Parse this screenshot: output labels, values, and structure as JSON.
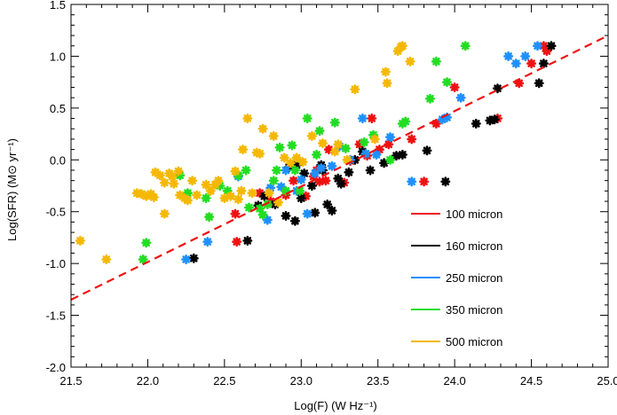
{
  "chart_data": {
    "type": "scatter",
    "title": "",
    "xlabel": "Log(F) (W Hz⁻¹)",
    "ylabel": "Log(SFR) (M⊙ yr⁻¹)",
    "xlim": [
      21.5,
      25.0
    ],
    "ylim": [
      -2.0,
      1.5
    ],
    "x_ticks": [
      21.5,
      22.0,
      22.5,
      23.0,
      23.5,
      24.0,
      24.5,
      25.0
    ],
    "y_ticks": [
      -2.0,
      -1.5,
      -1.0,
      -0.5,
      0.0,
      0.5,
      1.0,
      1.5
    ],
    "x_tick_labels": [
      "21.5",
      "22.0",
      "22.5",
      "23.0",
      "23.5",
      "24.0",
      "24.5",
      "25.0"
    ],
    "y_tick_labels": [
      "-2.0",
      "-1.5",
      "-1.0",
      "-0.5",
      "0.0",
      "0.5",
      "1.0",
      "1.5"
    ],
    "grid": false,
    "legend_position": "lower-right",
    "marker": "asterisk",
    "fit_line": {
      "style": "dashed",
      "color": "#ee1111",
      "x": [
        21.5,
        25.0
      ],
      "y": [
        -1.35,
        1.2
      ]
    },
    "series": [
      {
        "name": "100 micron",
        "color": "#ee1111",
        "points": [
          [
            22.57,
            -0.52
          ],
          [
            22.58,
            -0.79
          ],
          [
            22.73,
            -0.32
          ],
          [
            22.8,
            -0.4
          ],
          [
            22.9,
            -0.34
          ],
          [
            22.95,
            -0.2
          ],
          [
            23.03,
            -0.35
          ],
          [
            23.08,
            -0.16
          ],
          [
            23.1,
            -0.1
          ],
          [
            23.12,
            -0.21
          ],
          [
            23.16,
            -0.2
          ],
          [
            23.18,
            0.1
          ],
          [
            23.28,
            -0.22
          ],
          [
            23.32,
            -0.01
          ],
          [
            23.38,
            0.15
          ],
          [
            23.43,
            0.04
          ],
          [
            23.46,
            0.4
          ],
          [
            23.51,
            0.1
          ],
          [
            23.57,
            0.15
          ],
          [
            23.72,
            0.2
          ],
          [
            23.8,
            -0.21
          ],
          [
            23.88,
            0.35
          ],
          [
            24.0,
            0.7
          ],
          [
            24.28,
            0.4
          ],
          [
            24.42,
            0.74
          ],
          [
            24.5,
            0.93
          ],
          [
            24.58,
            1.1
          ],
          [
            24.6,
            1.05
          ]
        ]
      },
      {
        "name": "160 micron",
        "color": "#000000",
        "points": [
          [
            22.3,
            -0.95
          ],
          [
            22.65,
            -0.78
          ],
          [
            22.72,
            -0.44
          ],
          [
            22.76,
            -0.35
          ],
          [
            22.83,
            -0.43
          ],
          [
            22.9,
            -0.54
          ],
          [
            22.92,
            -0.07
          ],
          [
            22.96,
            -0.59
          ],
          [
            22.97,
            -0.05
          ],
          [
            23.0,
            -0.37
          ],
          [
            23.02,
            -0.13
          ],
          [
            23.07,
            -0.25
          ],
          [
            23.09,
            -0.51
          ],
          [
            23.13,
            -0.05
          ],
          [
            23.14,
            -0.1
          ],
          [
            23.17,
            -0.43
          ],
          [
            23.2,
            -0.49
          ],
          [
            23.24,
            -0.18
          ],
          [
            23.26,
            -0.23
          ],
          [
            23.31,
            -0.12
          ],
          [
            23.35,
            0.0
          ],
          [
            23.4,
            0.08
          ],
          [
            23.45,
            -0.1
          ],
          [
            23.54,
            -0.03
          ],
          [
            23.62,
            0.04
          ],
          [
            23.66,
            0.05
          ],
          [
            23.82,
            0.09
          ],
          [
            23.94,
            -0.21
          ],
          [
            24.14,
            0.35
          ],
          [
            24.23,
            0.38
          ],
          [
            24.26,
            0.39
          ],
          [
            24.28,
            0.69
          ],
          [
            24.55,
            0.74
          ],
          [
            24.58,
            0.93
          ],
          [
            24.63,
            1.1
          ]
        ]
      },
      {
        "name": "250 micron",
        "color": "#1e90ff",
        "points": [
          [
            22.25,
            -0.96
          ],
          [
            22.39,
            -0.79
          ],
          [
            22.59,
            -0.16
          ],
          [
            22.78,
            -0.58
          ],
          [
            22.8,
            -0.27
          ],
          [
            22.87,
            -0.26
          ],
          [
            22.9,
            -0.1
          ],
          [
            22.97,
            -0.3
          ],
          [
            23.0,
            -0.19
          ],
          [
            23.04,
            -0.52
          ],
          [
            23.09,
            -0.13
          ],
          [
            23.13,
            -0.08
          ],
          [
            23.2,
            -0.06
          ],
          [
            23.25,
            0.13
          ],
          [
            23.32,
            0.0
          ],
          [
            23.4,
            0.4
          ],
          [
            23.42,
            0.06
          ],
          [
            23.49,
            0.05
          ],
          [
            23.58,
            0.22
          ],
          [
            23.72,
            -0.21
          ],
          [
            23.92,
            0.39
          ],
          [
            23.95,
            0.41
          ],
          [
            24.04,
            0.6
          ],
          [
            24.35,
            1.0
          ],
          [
            24.4,
            0.93
          ],
          [
            24.46,
            1.0
          ],
          [
            24.54,
            1.1
          ]
        ]
      },
      {
        "name": "350 micron",
        "color": "#22dd22",
        "points": [
          [
            21.97,
            -0.96
          ],
          [
            21.99,
            -0.8
          ],
          [
            22.21,
            -0.15
          ],
          [
            22.26,
            -0.32
          ],
          [
            22.38,
            -0.37
          ],
          [
            22.4,
            -0.55
          ],
          [
            22.47,
            -0.25
          ],
          [
            22.52,
            -0.3
          ],
          [
            22.59,
            -0.15
          ],
          [
            22.64,
            -0.1
          ],
          [
            22.66,
            -0.46
          ],
          [
            22.73,
            -0.47
          ],
          [
            22.75,
            -0.53
          ],
          [
            22.78,
            -0.43
          ],
          [
            22.82,
            -0.2
          ],
          [
            22.84,
            -0.1
          ],
          [
            22.86,
            0.12
          ],
          [
            22.9,
            -0.3
          ],
          [
            22.94,
            0.14
          ],
          [
            22.96,
            -0.1
          ],
          [
            22.99,
            -0.3
          ],
          [
            23.04,
            0.4
          ],
          [
            23.1,
            0.05
          ],
          [
            23.12,
            0.28
          ],
          [
            23.22,
            0.36
          ],
          [
            23.29,
            0.11
          ],
          [
            23.41,
            0.17
          ],
          [
            23.47,
            0.24
          ],
          [
            23.58,
            0.0
          ],
          [
            23.66,
            0.35
          ],
          [
            23.68,
            0.37
          ],
          [
            23.84,
            0.59
          ],
          [
            23.88,
            0.95
          ],
          [
            23.95,
            0.75
          ],
          [
            24.07,
            1.1
          ]
        ]
      },
      {
        "name": "500 micron",
        "color": "#f5b800",
        "points": [
          [
            21.56,
            -0.78
          ],
          [
            21.73,
            -0.96
          ],
          [
            21.93,
            -0.32
          ],
          [
            21.96,
            -0.33
          ],
          [
            21.99,
            -0.35
          ],
          [
            22.02,
            -0.33
          ],
          [
            22.04,
            -0.36
          ],
          [
            22.05,
            -0.12
          ],
          [
            22.08,
            -0.15
          ],
          [
            22.11,
            -0.22
          ],
          [
            22.11,
            -0.52
          ],
          [
            22.14,
            -0.13
          ],
          [
            22.16,
            -0.16
          ],
          [
            22.17,
            -0.23
          ],
          [
            22.2,
            -0.11
          ],
          [
            22.21,
            -0.34
          ],
          [
            22.24,
            -0.37
          ],
          [
            22.26,
            -0.39
          ],
          [
            22.29,
            -0.2
          ],
          [
            22.32,
            -0.34
          ],
          [
            22.38,
            -0.24
          ],
          [
            22.41,
            -0.3
          ],
          [
            22.44,
            -0.24
          ],
          [
            22.46,
            -0.2
          ],
          [
            22.5,
            -0.37
          ],
          [
            22.54,
            -0.35
          ],
          [
            22.57,
            -0.11
          ],
          [
            22.59,
            -0.38
          ],
          [
            22.61,
            -0.3
          ],
          [
            22.62,
            0.1
          ],
          [
            22.65,
            0.4
          ],
          [
            22.68,
            -0.32
          ],
          [
            22.71,
            0.07
          ],
          [
            22.73,
            0.06
          ],
          [
            22.75,
            0.3
          ],
          [
            22.79,
            -0.32
          ],
          [
            22.82,
            0.23
          ],
          [
            22.85,
            -0.41
          ],
          [
            22.89,
            0.02
          ],
          [
            22.93,
            -0.03
          ],
          [
            22.97,
            0.02
          ],
          [
            23.01,
            -0.02
          ],
          [
            23.07,
            0.23
          ],
          [
            23.14,
            0.16
          ],
          [
            23.22,
            0.08
          ],
          [
            23.24,
            0.15
          ],
          [
            23.3,
            0.0
          ],
          [
            23.35,
            0.68
          ],
          [
            23.48,
            0.2
          ],
          [
            23.55,
            0.85
          ],
          [
            23.56,
            0.74
          ],
          [
            23.63,
            1.05
          ],
          [
            23.65,
            1.09
          ],
          [
            23.66,
            1.1
          ],
          [
            23.71,
            0.95
          ]
        ]
      }
    ]
  }
}
